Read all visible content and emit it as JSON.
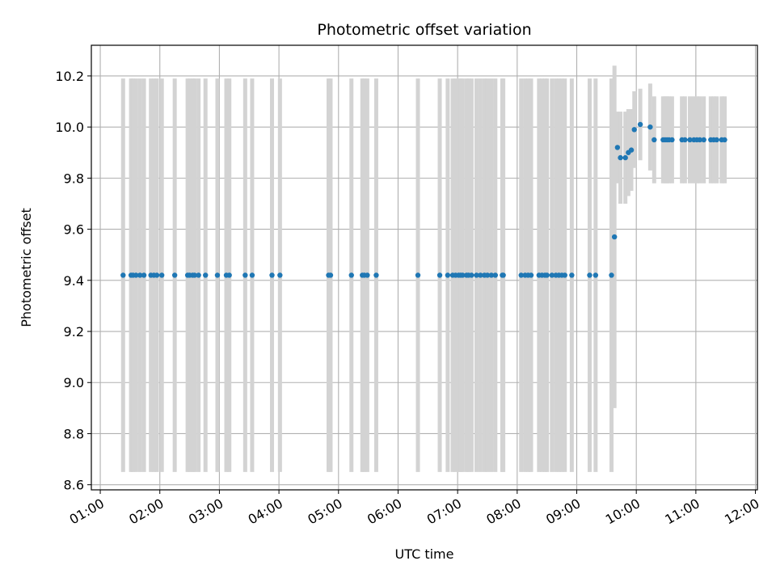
{
  "chart_data": {
    "type": "scatter",
    "title": "Photometric offset variation",
    "xlabel": "UTC time",
    "ylabel": "Photometric offset",
    "grid": true,
    "legend": "none",
    "xlim": [
      "00:51",
      "12:02"
    ],
    "ylim": [
      8.58,
      10.32
    ],
    "x_ticks": [
      "01:00",
      "02:00",
      "03:00",
      "04:00",
      "05:00",
      "06:00",
      "07:00",
      "08:00",
      "09:00",
      "10:00",
      "11:00",
      "12:00"
    ],
    "y_ticks": [
      8.6,
      8.8,
      9.0,
      9.2,
      9.4,
      9.6,
      9.8,
      10.0,
      10.2
    ],
    "series": [
      {
        "marker_color": "#1f77b4",
        "errorbar_color": "#d3d3d3",
        "x": [
          "01:23",
          "01:31",
          "01:33",
          "01:36",
          "01:40",
          "01:44",
          "01:51",
          "01:54",
          "01:57",
          "02:02",
          "02:15",
          "02:28",
          "02:30",
          "02:33",
          "02:35",
          "02:39",
          "02:46",
          "02:58",
          "03:07",
          "03:10",
          "03:26",
          "03:33",
          "03:53",
          "04:01",
          "04:50",
          "04:52",
          "05:13",
          "05:24",
          "05:26",
          "05:29",
          "05:38",
          "06:20",
          "06:42",
          "06:50",
          "06:55",
          "06:58",
          "07:01",
          "07:03",
          "07:05",
          "07:09",
          "07:11",
          "07:14",
          "07:19",
          "07:23",
          "07:27",
          "07:30",
          "07:34",
          "07:38",
          "07:45",
          "07:46",
          "08:04",
          "08:08",
          "08:11",
          "08:14",
          "08:22",
          "08:25",
          "08:28",
          "08:30",
          "08:35",
          "08:39",
          "08:42",
          "08:45",
          "08:48",
          "08:55",
          "09:13",
          "09:19",
          "09:35",
          "09:38",
          "09:41",
          "09:44",
          "09:49",
          "09:52",
          "09:55",
          "09:58",
          "10:04",
          "10:14",
          "10:18",
          "10:27",
          "10:29",
          "10:31",
          "10:33",
          "10:36",
          "10:46",
          "10:49",
          "10:54",
          "10:58",
          "11:01",
          "11:04",
          "11:08",
          "11:15",
          "11:18",
          "11:21",
          "11:26",
          "11:29"
        ],
        "y": [
          9.42,
          9.42,
          9.42,
          9.42,
          9.42,
          9.42,
          9.42,
          9.42,
          9.42,
          9.42,
          9.42,
          9.42,
          9.42,
          9.42,
          9.42,
          9.42,
          9.42,
          9.42,
          9.42,
          9.42,
          9.42,
          9.42,
          9.42,
          9.42,
          9.42,
          9.42,
          9.42,
          9.42,
          9.42,
          9.42,
          9.42,
          9.42,
          9.42,
          9.42,
          9.42,
          9.42,
          9.42,
          9.42,
          9.42,
          9.42,
          9.42,
          9.42,
          9.42,
          9.42,
          9.42,
          9.42,
          9.42,
          9.42,
          9.42,
          9.42,
          9.42,
          9.42,
          9.42,
          9.42,
          9.42,
          9.42,
          9.42,
          9.42,
          9.42,
          9.42,
          9.42,
          9.42,
          9.42,
          9.42,
          9.42,
          9.42,
          9.42,
          9.57,
          9.92,
          9.88,
          9.88,
          9.9,
          9.91,
          9.99,
          10.01,
          10.0,
          9.95,
          9.95,
          9.95,
          9.95,
          9.95,
          9.95,
          9.95,
          9.95,
          9.95,
          9.95,
          9.95,
          9.95,
          9.95,
          9.95,
          9.95,
          9.95,
          9.95,
          9.95
        ],
        "yerr": [
          0.77,
          0.77,
          0.77,
          0.77,
          0.77,
          0.77,
          0.77,
          0.77,
          0.77,
          0.77,
          0.77,
          0.77,
          0.77,
          0.77,
          0.77,
          0.77,
          0.77,
          0.77,
          0.77,
          0.77,
          0.77,
          0.77,
          0.77,
          0.77,
          0.77,
          0.77,
          0.77,
          0.77,
          0.77,
          0.77,
          0.77,
          0.77,
          0.77,
          0.77,
          0.77,
          0.77,
          0.77,
          0.77,
          0.77,
          0.77,
          0.77,
          0.77,
          0.77,
          0.77,
          0.77,
          0.77,
          0.77,
          0.77,
          0.77,
          0.77,
          0.77,
          0.77,
          0.77,
          0.77,
          0.77,
          0.77,
          0.77,
          0.77,
          0.77,
          0.77,
          0.77,
          0.77,
          0.77,
          0.77,
          0.77,
          0.77,
          0.77,
          0.67,
          0.14,
          0.18,
          0.18,
          0.17,
          0.16,
          0.15,
          0.14,
          0.17,
          0.17,
          0.17,
          0.17,
          0.17,
          0.17,
          0.17,
          0.17,
          0.17,
          0.17,
          0.17,
          0.17,
          0.17,
          0.17,
          0.17,
          0.17,
          0.17,
          0.17,
          0.17
        ]
      }
    ]
  }
}
